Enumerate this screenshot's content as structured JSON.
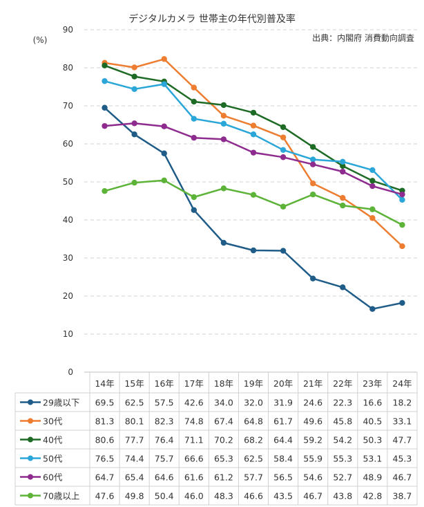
{
  "chart_data": {
    "type": "line",
    "title": "デジタルカメラ 世帯主の年代別普及率",
    "source": "出典：内閣府 消費動向調査",
    "ylabel": "(%)",
    "xlabel": "",
    "ylim": [
      0,
      90
    ],
    "yticks": [
      0,
      10,
      20,
      30,
      40,
      50,
      60,
      70,
      80,
      90
    ],
    "grid": true,
    "legend": "data-table-rows",
    "categories": [
      "14年",
      "15年",
      "16年",
      "17年",
      "18年",
      "19年",
      "20年",
      "21年",
      "22年",
      "23年",
      "24年"
    ],
    "series": [
      {
        "name": "29歳以下",
        "color": "#1f5c87",
        "values": [
          69.5,
          62.5,
          57.5,
          42.6,
          34.0,
          32.0,
          31.9,
          24.6,
          22.3,
          16.6,
          18.2
        ],
        "labels": [
          "69.5",
          "62.5",
          "57.5",
          "42.6",
          "34.0",
          "32.0",
          "31.9",
          "24.6",
          "22.3",
          "16.6",
          "18.2"
        ]
      },
      {
        "name": "30代",
        "color": "#ed7d31",
        "values": [
          81.3,
          80.1,
          82.3,
          74.8,
          67.4,
          64.8,
          61.7,
          49.6,
          45.8,
          40.5,
          33.1
        ],
        "labels": [
          "81.3",
          "80.1",
          "82.3",
          "74.8",
          "67.4",
          "64.8",
          "61.7",
          "49.6",
          "45.8",
          "40.5",
          "33.1"
        ]
      },
      {
        "name": "40代",
        "color": "#1e6b26",
        "values": [
          80.6,
          77.7,
          76.4,
          71.1,
          70.2,
          68.2,
          64.4,
          59.2,
          54.2,
          50.3,
          47.7
        ],
        "labels": [
          "80.6",
          "77.7",
          "76.4",
          "71.1",
          "70.2",
          "68.2",
          "64.4",
          "59.2",
          "54.2",
          "50.3",
          "47.7"
        ]
      },
      {
        "name": "50代",
        "color": "#2aa6d9",
        "values": [
          76.5,
          74.4,
          75.7,
          66.6,
          65.3,
          62.5,
          58.4,
          55.9,
          55.3,
          53.1,
          45.3
        ],
        "labels": [
          "76.5",
          "74.4",
          "75.7",
          "66.6",
          "65.3",
          "62.5",
          "58.4",
          "55.9",
          "55.3",
          "53.1",
          "45.3"
        ]
      },
      {
        "name": "60代",
        "color": "#8e2b8e",
        "values": [
          64.7,
          65.4,
          64.6,
          61.6,
          61.2,
          57.7,
          56.5,
          54.6,
          52.7,
          48.9,
          46.7
        ],
        "labels": [
          "64.7",
          "65.4",
          "64.6",
          "61.6",
          "61.2",
          "57.7",
          "56.5",
          "54.6",
          "52.7",
          "48.9",
          "46.7"
        ]
      },
      {
        "name": "70歳以上",
        "color": "#5cb338",
        "values": [
          47.6,
          49.8,
          50.4,
          46.0,
          48.3,
          46.6,
          43.5,
          46.7,
          43.8,
          42.8,
          38.7
        ],
        "labels": [
          "47.6",
          "49.8",
          "50.4",
          "46.0",
          "48.3",
          "46.6",
          "43.5",
          "46.7",
          "43.8",
          "42.8",
          "38.7"
        ]
      }
    ]
  }
}
